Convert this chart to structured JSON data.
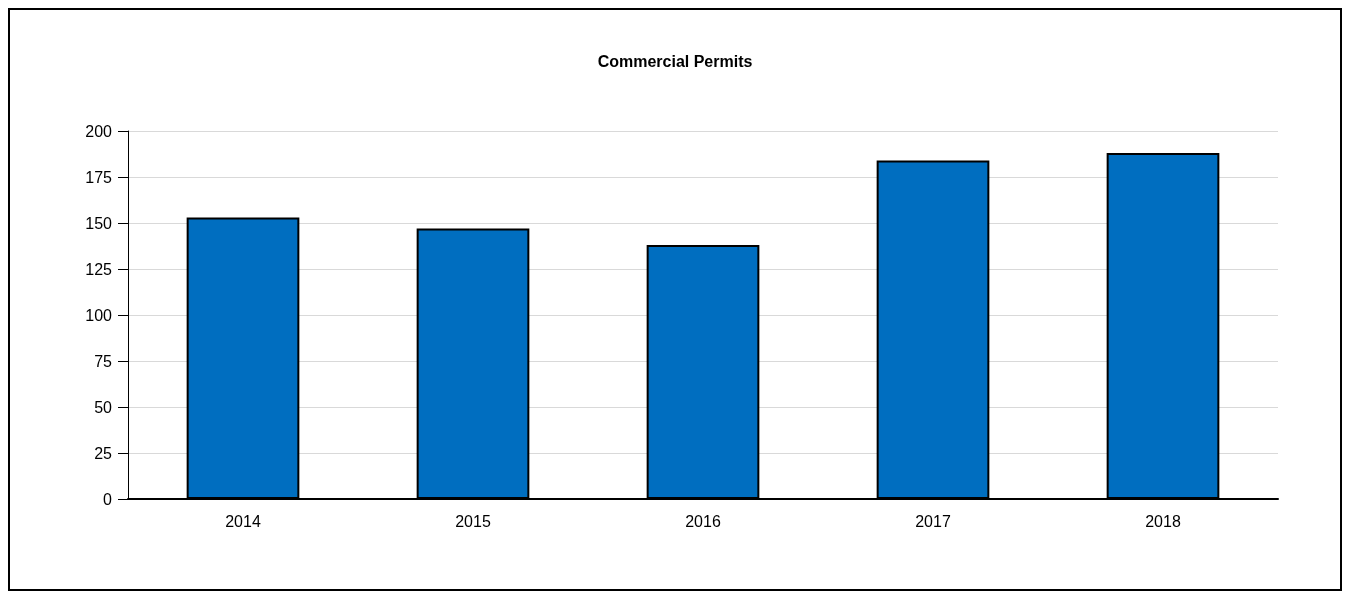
{
  "chart_data": {
    "type": "bar",
    "title": "Commercial Permits",
    "categories": [
      "2014",
      "2015",
      "2016",
      "2017",
      "2018"
    ],
    "values": [
      153,
      147,
      138,
      184,
      188
    ],
    "color": "#006ec0",
    "ylim": [
      0,
      200
    ],
    "yticks": [
      0,
      25,
      50,
      75,
      100,
      125,
      150,
      175,
      200
    ],
    "grid": "y"
  }
}
